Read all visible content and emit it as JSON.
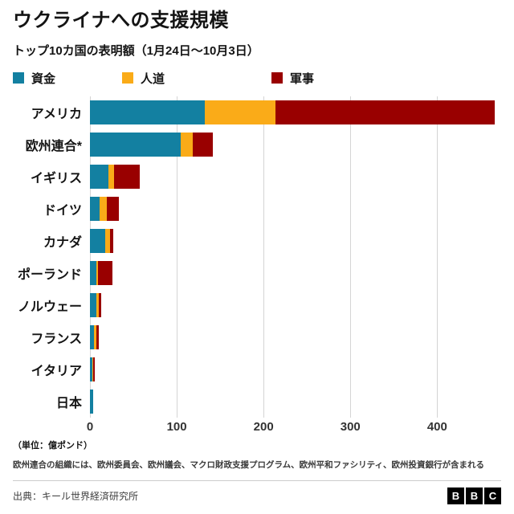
{
  "header": {
    "title": "ウクライナへの支援規模",
    "subtitle": "トップ10カ国の表明額（1月24日〜10月3日）"
  },
  "legend": [
    {
      "label": "資金",
      "color": "#1380A1"
    },
    {
      "label": "人道",
      "color": "#FAAB18"
    },
    {
      "label": "軍事",
      "color": "#990000"
    }
  ],
  "chart_data": {
    "type": "bar",
    "orientation": "horizontal",
    "stacked": true,
    "title": "ウクライナへの支援規模",
    "subtitle": "トップ10カ国の表明額（1月24日〜10月3日）",
    "unit_label": "（単位：億ポンド）",
    "categories": [
      "アメリカ",
      "欧州連合*",
      "イギリス",
      "ドイツ",
      "カナダ",
      "ポーランド",
      "ノルウェー",
      "フランス",
      "イタリア",
      "日本"
    ],
    "series": [
      {
        "name": "資金",
        "key": "funds",
        "color": "#1380A1",
        "values": [
          132,
          105,
          21,
          11,
          18,
          7,
          7,
          5,
          3,
          4
        ]
      },
      {
        "name": "人道",
        "key": "humanitarian",
        "color": "#FAAB18",
        "values": [
          82,
          13,
          7,
          8,
          5,
          2,
          3,
          2,
          1,
          0
        ]
      },
      {
        "name": "軍事",
        "key": "military",
        "color": "#990000",
        "values": [
          252,
          24,
          29,
          14,
          4,
          17,
          3,
          3,
          2,
          0
        ]
      }
    ],
    "x_ticks": [
      0,
      100,
      200,
      300,
      400
    ],
    "xmax": 470,
    "grid": true,
    "legend_position": "top"
  },
  "footnote": "欧州連合の組織には、欧州委員会、欧州議会、マクロ財政支援プログラム、欧州平和ファシリティ、欧州投資銀行が含まれる",
  "source": "出典：キール世界経済研究所",
  "bbc_logo": [
    "B",
    "B",
    "C"
  ]
}
